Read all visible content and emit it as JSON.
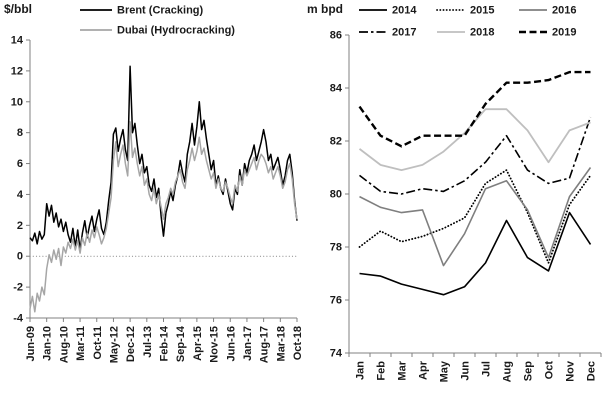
{
  "figure": {
    "background": "#ffffff",
    "text_color": "#1a1a1a",
    "axis_color": "#808080"
  },
  "chart_data": [
    {
      "id": "refining-margins",
      "type": "line",
      "unit_label": "$/bbl",
      "ylim": [
        -4,
        14
      ],
      "yticks": [
        14,
        12,
        10,
        8,
        6,
        4,
        2,
        0,
        -2,
        -4
      ],
      "x_tick_labels": [
        "Jun-09",
        "Jan-10",
        "Aug-10",
        "Mar-11",
        "Oct-11",
        "May-12",
        "Dec-12",
        "Jul-13",
        "Feb-14",
        "Sep-14",
        "Apr-15",
        "Nov-15",
        "Jun-16",
        "Jan-17",
        "Aug-17",
        "Mar-18",
        "Oct-18"
      ],
      "x_tick_every": 7,
      "zero_gridline": "dotted",
      "legend_position": "top-stacked",
      "grid": "off",
      "series": [
        {
          "name": "Brent (Cracking)",
          "color": "#000000",
          "dash": "solid",
          "width": 1.5,
          "values": [
            1.2,
            1.0,
            1.5,
            0.8,
            1.6,
            1.1,
            1.4,
            3.4,
            2.6,
            3.3,
            2.2,
            2.8,
            1.9,
            2.4,
            1.6,
            2.2,
            1.4,
            0.9,
            1.8,
            0.6,
            1.7,
            0.4,
            1.5,
            2.3,
            1.2,
            2.0,
            2.6,
            1.6,
            2.4,
            3.0,
            1.8,
            1.4,
            2.2,
            3.6,
            4.8,
            7.9,
            8.3,
            6.8,
            7.6,
            8.2,
            6.9,
            6.2,
            12.3,
            8.0,
            8.6,
            7.2,
            6.0,
            6.6,
            5.4,
            5.8,
            4.6,
            4.2,
            5.0,
            3.8,
            4.4,
            2.6,
            1.3,
            2.8,
            3.4,
            4.2,
            3.6,
            4.6,
            5.2,
            6.2,
            5.4,
            4.8,
            6.6,
            7.4,
            8.6,
            7.2,
            8.4,
            10.0,
            8.2,
            8.8,
            7.6,
            6.6,
            5.6,
            6.2,
            4.6,
            5.2,
            4.4,
            4.0,
            5.0,
            4.2,
            3.4,
            3.0,
            4.4,
            4.0,
            5.6,
            4.6,
            6.0,
            5.4,
            6.2,
            6.6,
            7.2,
            6.2,
            6.8,
            7.4,
            8.2,
            7.4,
            6.2,
            6.6,
            5.6,
            6.0,
            6.4,
            5.6,
            4.6,
            5.2,
            6.2,
            6.6,
            5.4,
            3.6,
            2.3
          ]
        },
        {
          "name": "Dubai (Hydrocracking)",
          "color": "#a6a6a6",
          "dash": "solid",
          "width": 1.5,
          "values": [
            -3.4,
            -2.6,
            -3.6,
            -2.4,
            -2.9,
            -2.0,
            -2.5,
            -0.8,
            0.1,
            -0.4,
            0.4,
            -0.2,
            0.5,
            -0.6,
            0.6,
            0.2,
            0.9,
            0.5,
            1.1,
            0.4,
            1.0,
            0.2,
            1.2,
            0.7,
            1.5,
            0.9,
            1.7,
            1.2,
            1.9,
            1.4,
            0.8,
            1.2,
            1.8,
            2.8,
            3.8,
            6.2,
            7.4,
            5.8,
            6.6,
            7.2,
            6.0,
            5.2,
            8.7,
            6.4,
            7.0,
            6.0,
            5.2,
            5.8,
            4.6,
            5.0,
            4.0,
            3.6,
            4.4,
            3.4,
            4.0,
            3.2,
            2.4,
            3.4,
            3.8,
            4.4,
            4.0,
            4.8,
            5.2,
            5.6,
            4.8,
            4.4,
            5.6,
            6.2,
            7.0,
            6.2,
            6.8,
            7.7,
            6.6,
            7.0,
            6.2,
            5.6,
            5.0,
            5.4,
            4.4,
            5.0,
            4.4,
            4.2,
            4.8,
            4.4,
            3.8,
            3.4,
            4.6,
            4.2,
            5.2,
            4.6,
            5.6,
            5.2,
            5.6,
            6.0,
            6.4,
            5.6,
            6.2,
            6.6,
            6.4,
            6.0,
            5.4,
            5.8,
            5.0,
            5.4,
            5.8,
            5.2,
            4.4,
            4.8,
            5.6,
            6.0,
            5.0,
            3.4,
            2.4
          ]
        }
      ]
    },
    {
      "id": "oil-demand",
      "type": "line",
      "unit_label": "m bpd",
      "ylim": [
        74,
        86
      ],
      "yticks": [
        86,
        84,
        82,
        80,
        78,
        76,
        74
      ],
      "categories": [
        "Jan",
        "Feb",
        "Mar",
        "Apr",
        "May",
        "Jun",
        "Jul",
        "Aug",
        "Sep",
        "Oct",
        "Nov",
        "Dec"
      ],
      "legend_position": "top-grid",
      "grid": "off",
      "series": [
        {
          "name": "2014",
          "color": "#000000",
          "dash": "solid",
          "width": 1.6,
          "values": [
            77.0,
            76.9,
            76.6,
            76.4,
            76.2,
            76.5,
            77.4,
            79.0,
            77.6,
            77.1,
            79.3,
            78.1
          ]
        },
        {
          "name": "2015",
          "color": "#000000",
          "dash": "dotted",
          "width": 1.8,
          "values": [
            78.0,
            78.6,
            78.2,
            78.4,
            78.7,
            79.1,
            80.4,
            80.9,
            79.3,
            77.4,
            79.6,
            80.7
          ]
        },
        {
          "name": "2016",
          "color": "#7f7f7f",
          "dash": "solid",
          "width": 1.6,
          "values": [
            79.9,
            79.5,
            79.3,
            79.4,
            77.3,
            78.5,
            80.2,
            80.5,
            79.4,
            77.6,
            79.9,
            81.0
          ]
        },
        {
          "name": "2017",
          "color": "#000000",
          "dash": "dashdot",
          "width": 1.6,
          "values": [
            80.7,
            80.1,
            80.0,
            80.2,
            80.1,
            80.5,
            81.2,
            82.2,
            80.9,
            80.4,
            80.6,
            82.9
          ]
        },
        {
          "name": "2018",
          "color": "#bfbfbf",
          "dash": "solid",
          "width": 1.8,
          "values": [
            81.7,
            81.1,
            80.9,
            81.1,
            81.6,
            82.3,
            83.2,
            83.2,
            82.4,
            81.2,
            82.4,
            82.7
          ]
        },
        {
          "name": "2019",
          "color": "#000000",
          "dash": "dashed",
          "width": 2.4,
          "values": [
            83.3,
            82.2,
            81.8,
            82.2,
            82.2,
            82.2,
            83.4,
            84.2,
            84.2,
            84.3,
            84.6,
            84.6
          ]
        }
      ]
    }
  ]
}
